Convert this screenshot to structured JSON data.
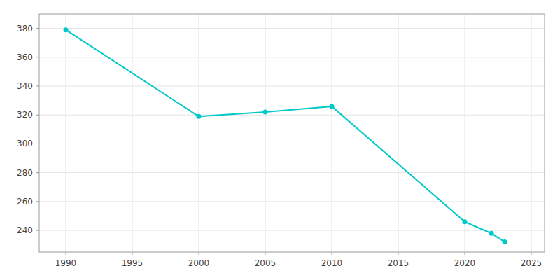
{
  "chart_data": {
    "type": "line",
    "x": [
      1990,
      2000,
      2005,
      2010,
      2020,
      2022,
      2023
    ],
    "values": [
      379,
      319,
      322,
      326,
      246,
      238,
      232
    ],
    "color": "#00C8C8",
    "marker": "circle",
    "xlim": [
      1988,
      2026
    ],
    "ylim": [
      225,
      390
    ],
    "xticks": [
      1990,
      1995,
      2000,
      2005,
      2010,
      2015,
      2020,
      2025
    ],
    "yticks": [
      240,
      260,
      280,
      300,
      320,
      340,
      360,
      380
    ],
    "grid": true
  }
}
